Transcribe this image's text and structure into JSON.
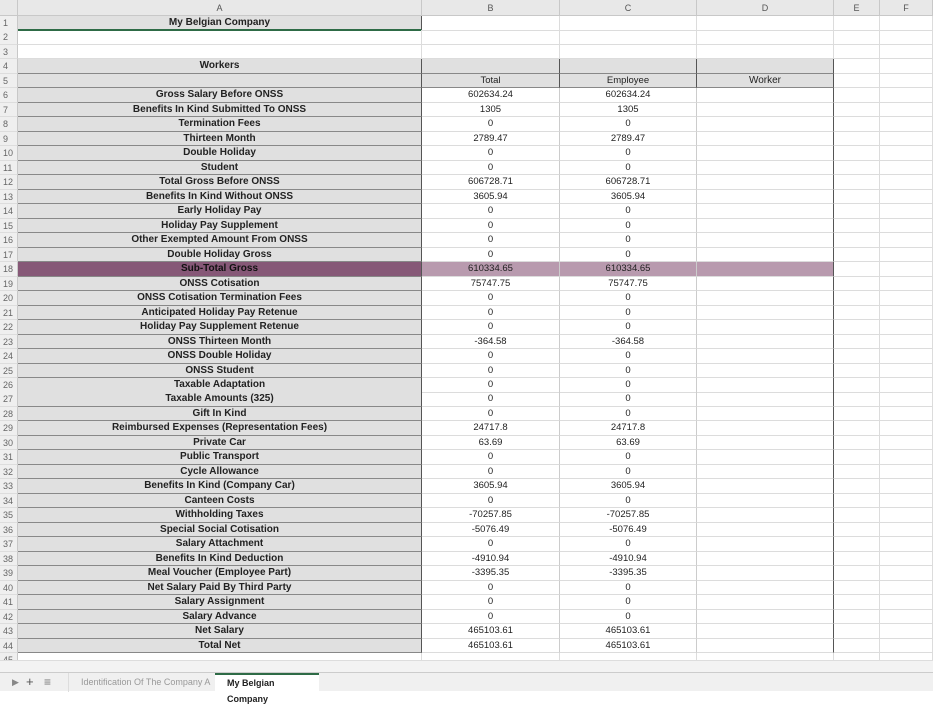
{
  "columns": [
    "A",
    "B",
    "C",
    "D",
    "E",
    "F"
  ],
  "title": "My Belgian Company",
  "section": "Workers",
  "headers": {
    "total": "Total",
    "employee": "Employee",
    "worker": "Worker"
  },
  "highlight_colors": {
    "label": "#865877",
    "values": "#b89aae"
  },
  "rows": [
    {
      "label": "Gross Salary Before ONSS",
      "total": "602634.24",
      "employee": "602634.24"
    },
    {
      "label": "Benefits In Kind Submitted To ONSS",
      "total": "1305",
      "employee": "1305"
    },
    {
      "label": "Termination Fees",
      "total": "0",
      "employee": "0"
    },
    {
      "label": "Thirteen Month",
      "total": "2789.47",
      "employee": "2789.47"
    },
    {
      "label": "Double Holiday",
      "total": "0",
      "employee": "0"
    },
    {
      "label": "Student",
      "total": "0",
      "employee": "0"
    },
    {
      "label": "Total Gross Before ONSS",
      "total": "606728.71",
      "employee": "606728.71"
    },
    {
      "label": "Benefits In Kind Without ONSS",
      "total": "3605.94",
      "employee": "3605.94"
    },
    {
      "label": "Early Holiday Pay",
      "total": "0",
      "employee": "0"
    },
    {
      "label": "Holiday Pay Supplement",
      "total": "0",
      "employee": "0"
    },
    {
      "label": "Other Exempted Amount From ONSS",
      "total": "0",
      "employee": "0"
    },
    {
      "label": "Double Holiday Gross",
      "total": "0",
      "employee": "0"
    },
    {
      "label": "Sub-Total Gross",
      "total": "610334.65",
      "employee": "610334.65",
      "highlight": true
    },
    {
      "label": "ONSS Cotisation",
      "total": "75747.75",
      "employee": "75747.75"
    },
    {
      "label": "ONSS Cotisation Termination Fees",
      "total": "0",
      "employee": "0"
    },
    {
      "label": "Anticipated Holiday Pay Retenue",
      "total": "0",
      "employee": "0"
    },
    {
      "label": "Holiday Pay Supplement Retenue",
      "total": "0",
      "employee": "0"
    },
    {
      "label": "ONSS Thirteen Month",
      "total": "-364.58",
      "employee": "-364.58"
    },
    {
      "label": "ONSS Double Holiday",
      "total": "0",
      "employee": "0"
    },
    {
      "label": "ONSS Student",
      "total": "0",
      "employee": "0"
    },
    {
      "label": "Taxable Adaptation",
      "total": "0",
      "employee": "0"
    },
    {
      "label": "Taxable Amounts (325)",
      "total": "0",
      "employee": "0"
    },
    {
      "label": "Gift In Kind",
      "total": "0",
      "employee": "0"
    },
    {
      "label": "Reimbursed Expenses (Representation Fees)",
      "total": "24717.8",
      "employee": "24717.8"
    },
    {
      "label": "Private Car",
      "total": "63.69",
      "employee": "63.69"
    },
    {
      "label": "Public Transport",
      "total": "0",
      "employee": "0"
    },
    {
      "label": "Cycle Allowance",
      "total": "0",
      "employee": "0"
    },
    {
      "label": "Benefits In Kind (Company Car)",
      "total": "3605.94",
      "employee": "3605.94"
    },
    {
      "label": "Canteen Costs",
      "total": "0",
      "employee": "0"
    },
    {
      "label": "Withholding Taxes",
      "total": "-70257.85",
      "employee": "-70257.85"
    },
    {
      "label": "Special Social Cotisation",
      "total": "-5076.49",
      "employee": "-5076.49"
    },
    {
      "label": "Salary Attachment",
      "total": "0",
      "employee": "0"
    },
    {
      "label": "Benefits In Kind Deduction",
      "total": "-4910.94",
      "employee": "-4910.94"
    },
    {
      "label": "Meal Voucher (Employee Part)",
      "total": "-3395.35",
      "employee": "-3395.35"
    },
    {
      "label": "Net Salary Paid By Third Party",
      "total": "0",
      "employee": "0"
    },
    {
      "label": "Salary Assignment",
      "total": "0",
      "employee": "0"
    },
    {
      "label": "Salary Advance",
      "total": "0",
      "employee": "0"
    },
    {
      "label": "Net Salary",
      "total": "465103.61",
      "employee": "465103.61"
    },
    {
      "label": "Total Net",
      "total": "465103.61",
      "employee": "465103.61"
    }
  ],
  "sheet_tabs": [
    {
      "label": "Identification Of The Company A",
      "active": false
    },
    {
      "label": "My Belgian Company",
      "active": true
    }
  ],
  "icons": {
    "add": "+",
    "menu": "≡",
    "nav": "▶"
  }
}
